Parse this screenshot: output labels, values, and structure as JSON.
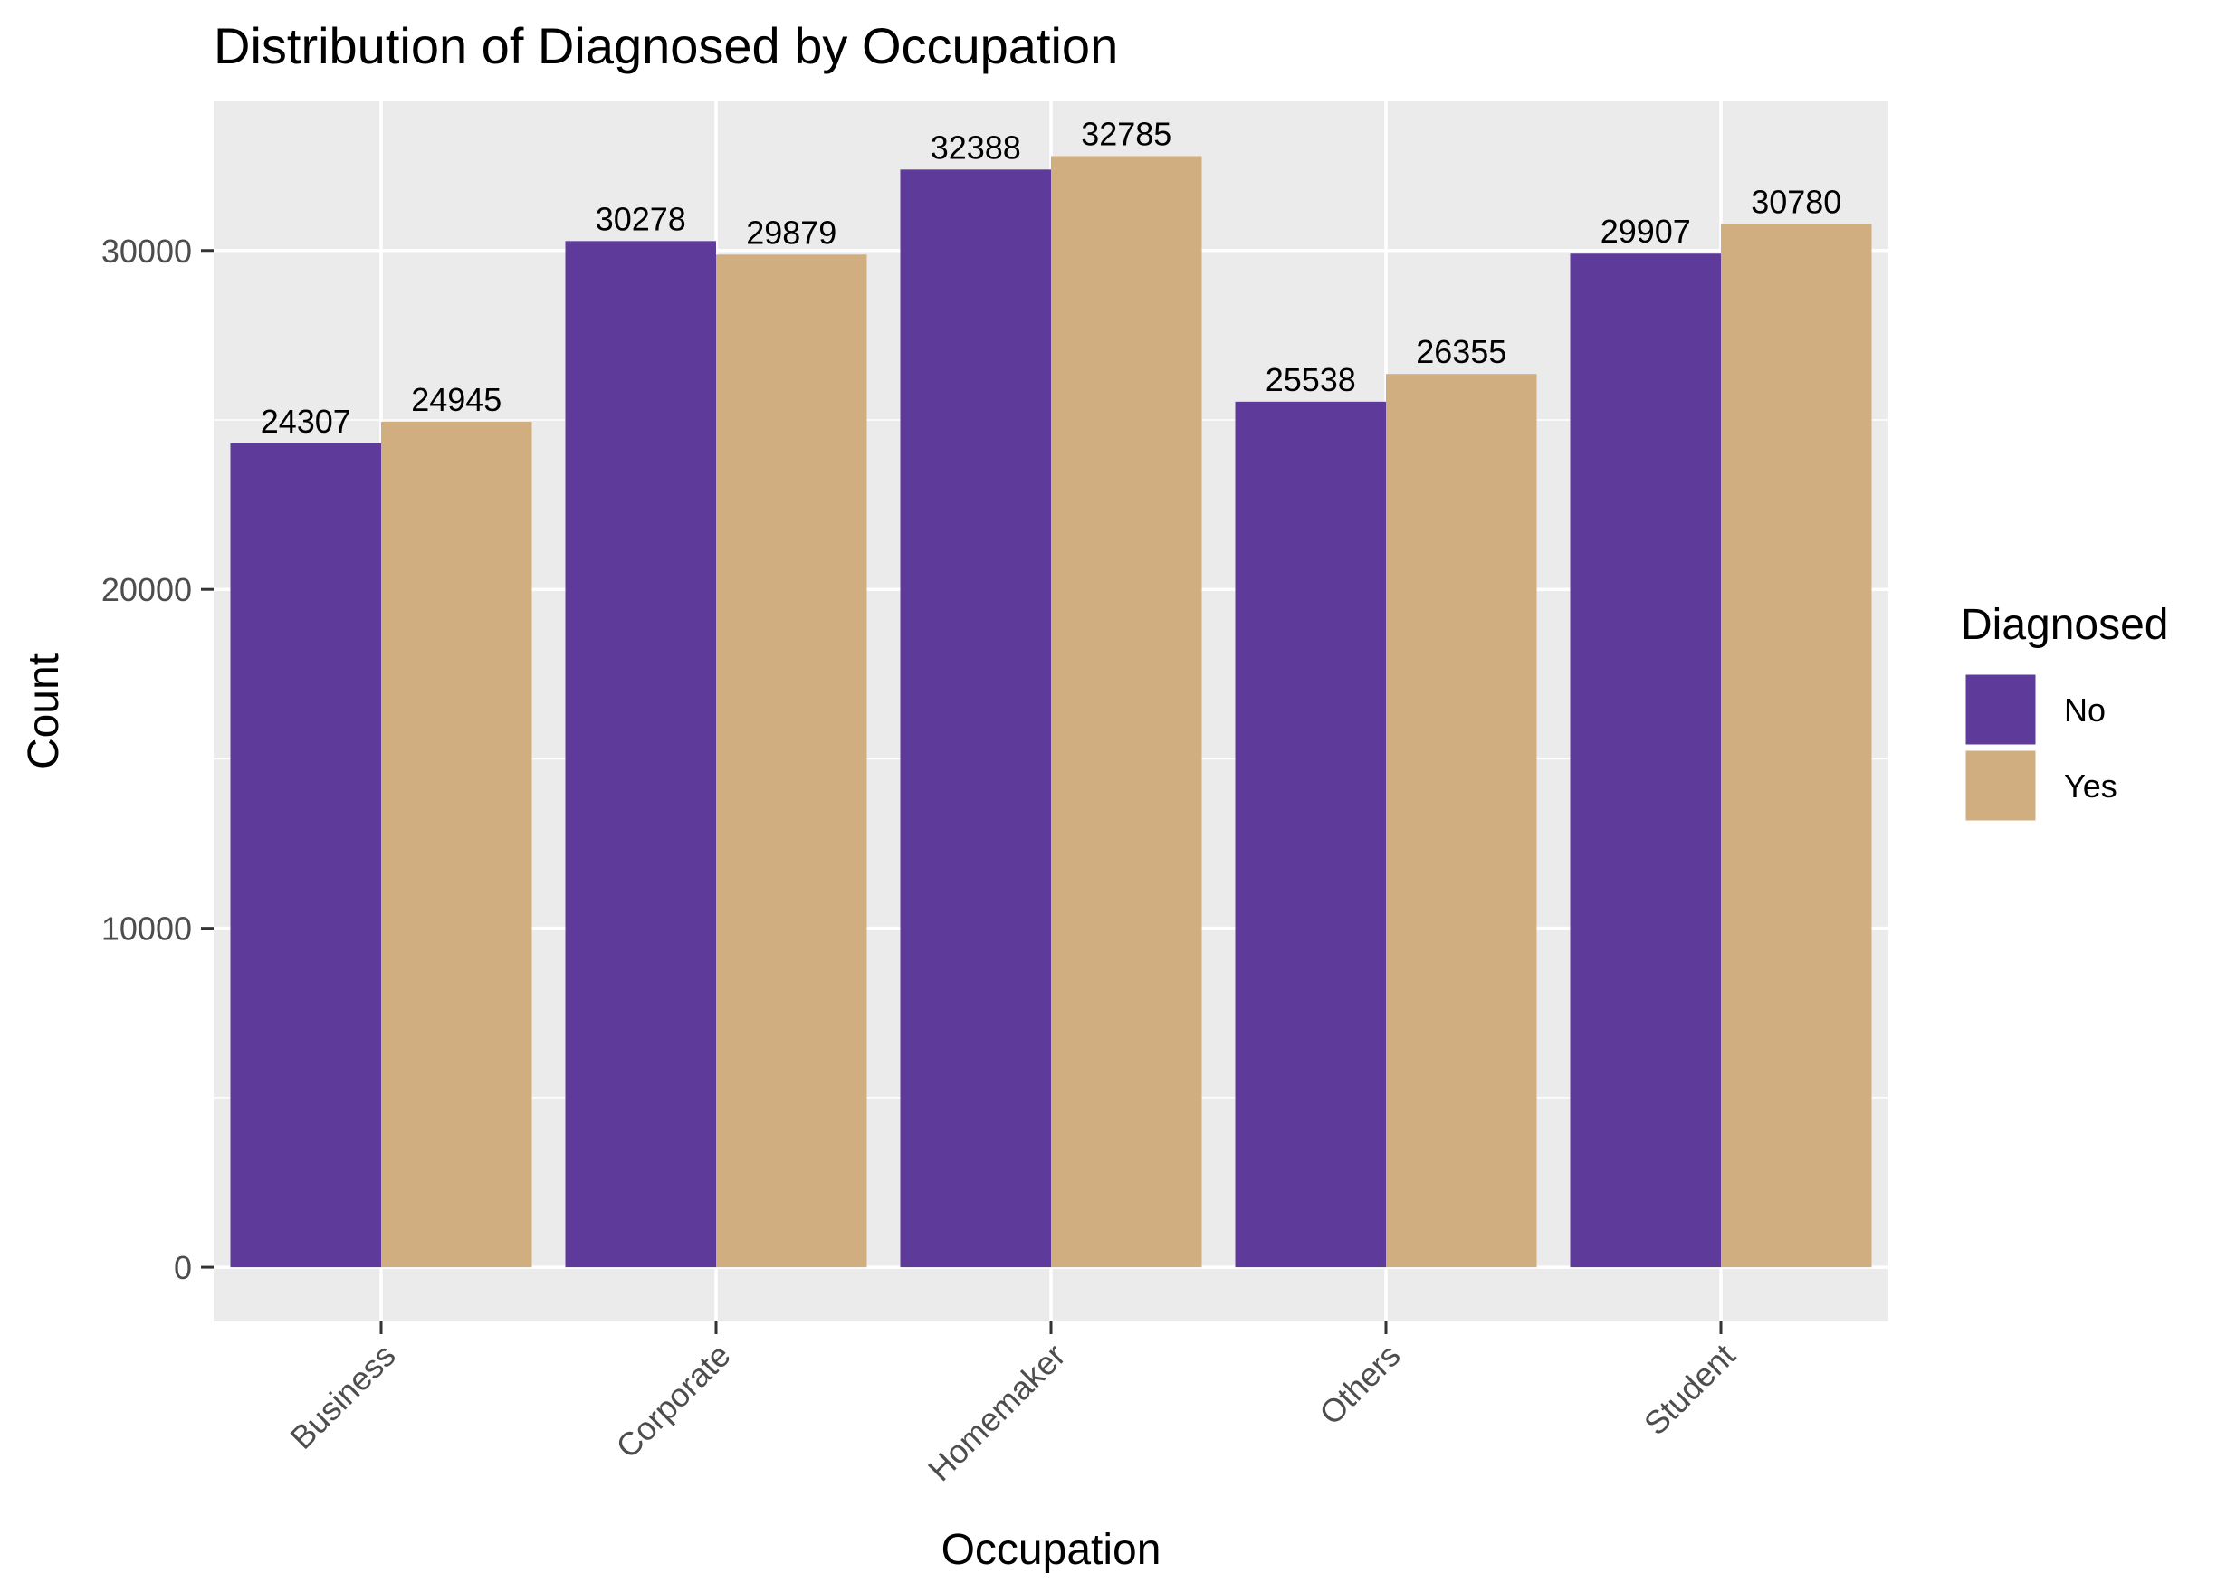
{
  "chart_data": {
    "type": "bar",
    "title": "Distribution of Diagnosed by Occupation",
    "xlabel": "Occupation",
    "ylabel": "Count",
    "categories": [
      "Business",
      "Corporate",
      "Homemaker",
      "Others",
      "Student"
    ],
    "series": [
      {
        "name": "No",
        "color": "#5e3a9a",
        "values": [
          24307,
          30278,
          32388,
          25538,
          29907
        ]
      },
      {
        "name": "Yes",
        "color": "#d1ae80",
        "values": [
          24945,
          29879,
          32785,
          26355,
          30780
        ]
      }
    ],
    "ylim": [
      -1600,
      34400
    ],
    "y_ticks": [
      0,
      10000,
      20000,
      30000
    ],
    "y_tick_labels": [
      "0",
      "10000",
      "20000",
      "30000"
    ],
    "grid": true,
    "panel_background": "#ebebeb",
    "legend": {
      "title": "Diagnosed",
      "position": "right"
    }
  }
}
